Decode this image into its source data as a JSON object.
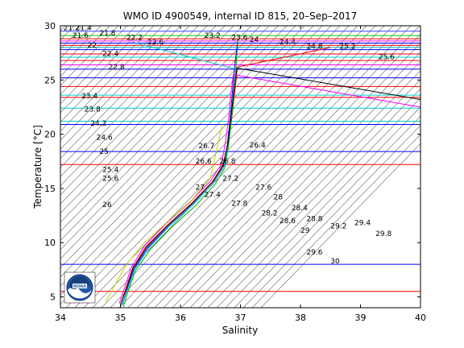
{
  "chart_data": {
    "type": "line",
    "title": "WMO ID 4900549, internal ID 815, 20–Sep–2017",
    "xlabel": "Salinity",
    "ylabel": "Temperature [°C]",
    "xlim": [
      34,
      40
    ],
    "ylim": [
      4,
      30
    ],
    "x_ticks": [
      "34",
      "35",
      "36",
      "37",
      "38",
      "39",
      "40"
    ],
    "y_ticks": [
      "5",
      "10",
      "15",
      "20",
      "25",
      "30"
    ],
    "grid": false,
    "legend": "none",
    "density_contour_labels": [
      {
        "text": "21.2",
        "S": 34.05,
        "T": 29.6
      },
      {
        "text": "21.4",
        "S": 34.25,
        "T": 29.6
      },
      {
        "text": "21.6",
        "S": 34.2,
        "T": 28.9
      },
      {
        "text": "21.8",
        "S": 34.65,
        "T": 29.1
      },
      {
        "text": "22",
        "S": 34.45,
        "T": 28.0
      },
      {
        "text": "22.2",
        "S": 35.1,
        "T": 28.7
      },
      {
        "text": "22.4",
        "S": 34.7,
        "T": 27.2
      },
      {
        "text": "22.6",
        "S": 35.45,
        "T": 28.3
      },
      {
        "text": "22.8",
        "S": 34.8,
        "T": 26.0
      },
      {
        "text": "23.4",
        "S": 34.35,
        "T": 23.3
      },
      {
        "text": "23.8",
        "S": 34.4,
        "T": 22.1
      },
      {
        "text": "24.2",
        "S": 34.5,
        "T": 20.8
      },
      {
        "text": "24.6",
        "S": 34.6,
        "T": 19.5
      },
      {
        "text": "25",
        "S": 34.65,
        "T": 18.2
      },
      {
        "text": "25.4",
        "S": 34.7,
        "T": 16.5
      },
      {
        "text": "25.6",
        "S": 34.7,
        "T": 15.7
      },
      {
        "text": "26",
        "S": 34.7,
        "T": 13.3
      },
      {
        "text": "26.4",
        "S": 37.15,
        "T": 18.8
      },
      {
        "text": "26.7",
        "S": 36.3,
        "T": 18.7
      },
      {
        "text": "26.6",
        "S": 36.25,
        "T": 17.3
      },
      {
        "text": "26.8",
        "S": 36.65,
        "T": 17.3
      },
      {
        "text": "27",
        "S": 36.25,
        "T": 14.9
      },
      {
        "text": "27.2",
        "S": 36.7,
        "T": 15.7
      },
      {
        "text": "27.4",
        "S": 36.4,
        "T": 14.2
      },
      {
        "text": "27.6",
        "S": 37.25,
        "T": 14.9
      },
      {
        "text": "27.8",
        "S": 36.85,
        "T": 13.4
      },
      {
        "text": "28",
        "S": 37.55,
        "T": 14.0
      },
      {
        "text": "28.2",
        "S": 37.35,
        "T": 12.5
      },
      {
        "text": "28.4",
        "S": 37.85,
        "T": 13.0
      },
      {
        "text": "28.6",
        "S": 37.65,
        "T": 11.8
      },
      {
        "text": "28.8",
        "S": 38.1,
        "T": 12.0
      },
      {
        "text": "29",
        "S": 38.0,
        "T": 10.9
      },
      {
        "text": "29.2",
        "S": 38.5,
        "T": 11.3
      },
      {
        "text": "29.4",
        "S": 38.9,
        "T": 11.6
      },
      {
        "text": "29.8",
        "S": 39.25,
        "T": 10.6
      },
      {
        "text": "29.6",
        "S": 38.1,
        "T": 8.9
      },
      {
        "text": "30",
        "S": 38.5,
        "T": 8.1
      },
      {
        "text": "23.6",
        "S": 36.85,
        "T": 28.7
      },
      {
        "text": "23.2",
        "S": 36.4,
        "T": 28.9
      },
      {
        "text": "24",
        "S": 37.15,
        "T": 28.5
      },
      {
        "text": "24.4",
        "S": 37.65,
        "T": 28.3
      },
      {
        "text": "24.8",
        "S": 38.1,
        "T": 27.9
      },
      {
        "text": "25.2",
        "S": 38.65,
        "T": 27.9
      },
      {
        "text": "25.6",
        "S": 39.3,
        "T": 26.9
      }
    ],
    "horizontal_lines": [
      {
        "T": 29.5,
        "color": "#4040ff"
      },
      {
        "T": 29.1,
        "color": "#00cc00"
      },
      {
        "T": 28.8,
        "color": "#ff0000"
      },
      {
        "T": 28.6,
        "color": "#ff00ff"
      },
      {
        "T": 28.4,
        "color": "#0000ff"
      },
      {
        "T": 28.2,
        "color": "#ff0000"
      },
      {
        "T": 28.0,
        "color": "#00aaaa"
      },
      {
        "T": 27.8,
        "color": "#0000ff"
      },
      {
        "T": 27.4,
        "color": "#ff0000"
      },
      {
        "T": 27.1,
        "color": "#00cccc"
      },
      {
        "T": 26.8,
        "color": "#ff0000"
      },
      {
        "T": 26.4,
        "color": "#ff00ff"
      },
      {
        "T": 26.0,
        "color": "#0000ff"
      },
      {
        "T": 25.2,
        "color": "#0000ff"
      },
      {
        "T": 24.4,
        "color": "#ff0000"
      },
      {
        "T": 23.6,
        "color": "#00cccc"
      },
      {
        "T": 23.4,
        "color": "#ff0000"
      },
      {
        "T": 22.4,
        "color": "#00cccc"
      },
      {
        "T": 21.2,
        "color": "#00cccc"
      },
      {
        "T": 20.9,
        "color": "#0000ff"
      },
      {
        "T": 18.4,
        "color": "#0000ff"
      },
      {
        "T": 17.2,
        "color": "#ff0000"
      },
      {
        "T": 8.0,
        "color": "#0000ff"
      },
      {
        "T": 5.5,
        "color": "#ff0000"
      }
    ],
    "series": [
      {
        "color": "#0000ff",
        "x": [
          35.02,
          35.1,
          35.22,
          35.45,
          35.8,
          36.2,
          36.55,
          36.72,
          36.78,
          36.82,
          36.86,
          36.9,
          36.95
        ],
        "y": [
          4.2,
          5.5,
          7.5,
          9.5,
          11.5,
          13.5,
          15.5,
          17.0,
          19.0,
          21.0,
          23.5,
          26.0,
          28.5
        ]
      },
      {
        "color": "#ff0000",
        "x": [
          35.0,
          35.08,
          35.2,
          35.42,
          35.78,
          36.18,
          36.53,
          36.7,
          36.8,
          36.85,
          36.9,
          36.95,
          38.5
        ],
        "y": [
          4.3,
          5.6,
          7.6,
          9.6,
          11.6,
          13.6,
          15.6,
          17.1,
          19.2,
          21.2,
          23.6,
          26.2,
          28.0
        ]
      },
      {
        "color": "#00aa00",
        "x": [
          35.05,
          35.12,
          35.25,
          35.5,
          35.85,
          36.25,
          36.58,
          36.74,
          36.8,
          36.84,
          36.88,
          36.92,
          36.96
        ],
        "y": [
          4.1,
          5.4,
          7.4,
          9.4,
          11.4,
          13.4,
          15.4,
          16.9,
          18.9,
          20.8,
          23.2,
          25.8,
          28.8
        ]
      },
      {
        "color": "#ff00ff",
        "x": [
          34.98,
          35.06,
          35.18,
          35.4,
          35.75,
          36.15,
          36.5,
          36.68,
          36.75,
          36.8,
          36.84,
          36.88,
          40.0
        ],
        "y": [
          4.4,
          5.7,
          7.7,
          9.7,
          11.7,
          13.7,
          15.7,
          17.2,
          19.3,
          21.3,
          23.8,
          25.5,
          22.5
        ]
      },
      {
        "color": "#00cccc",
        "x": [
          35.03,
          35.11,
          35.24,
          35.48,
          35.82,
          36.22,
          36.56,
          36.73,
          36.79,
          36.83,
          36.87,
          36.93,
          35.2
        ],
        "y": [
          4.25,
          5.55,
          7.55,
          9.55,
          11.55,
          13.55,
          15.55,
          17.05,
          19.1,
          21.1,
          23.4,
          26.0,
          28.5
        ]
      },
      {
        "color": "#cccc00",
        "x": [
          34.75,
          34.9,
          35.1,
          35.4,
          35.8,
          36.2,
          36.5,
          36.6,
          36.7
        ],
        "y": [
          4.5,
          6.0,
          8.0,
          10.0,
          12.0,
          14.0,
          16.0,
          18.5,
          21.0
        ]
      },
      {
        "color": "#000000",
        "x": [
          35.0,
          35.09,
          35.21,
          35.44,
          35.79,
          36.19,
          36.54,
          36.71,
          36.79,
          36.83,
          36.88,
          36.94,
          40.0
        ],
        "y": [
          4.3,
          5.6,
          7.6,
          9.6,
          11.6,
          13.6,
          15.6,
          17.1,
          19.1,
          21.1,
          23.5,
          26.1,
          23.2
        ]
      }
    ]
  }
}
